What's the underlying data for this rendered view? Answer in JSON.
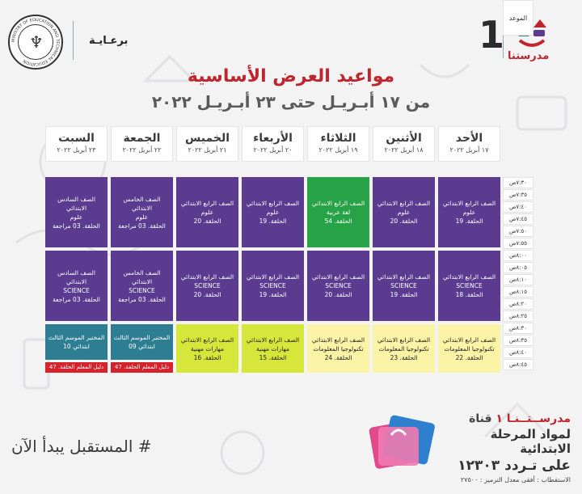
{
  "brand": {
    "number": "1",
    "name": "مدرستنا",
    "sponsor": "برعـايـة",
    "seal_text": "MINISTRY OF EDUCATION AND TECHNICAL EDUCATION"
  },
  "title": "مواعيد العرض الأساسية",
  "subtitle": "من ١٧ أبـريـل حتى ٢٣ أبـريـل ٢٠٢٢",
  "table": {
    "time_header": "الموعد",
    "days": [
      {
        "day": "الأحد",
        "date": "١٧ أبريل ٢٠٢٢"
      },
      {
        "day": "الأثنين",
        "date": "١٨ أبريل ٢٠٢٢"
      },
      {
        "day": "الثلاثاء",
        "date": "١٩ أبريل ٢٠٢٢"
      },
      {
        "day": "الأربعاء",
        "date": "٢٠ أبريل ٢٠٢٢"
      },
      {
        "day": "الخميس",
        "date": "٢١ أبريل ٢٠٢٢"
      },
      {
        "day": "الجمعة",
        "date": "٢٢ أبريل ٢٠٢٢"
      },
      {
        "day": "السبت",
        "date": "٢٣ أبريل ٢٠٢٢"
      }
    ],
    "times": [
      "٧:٣٠ص",
      "٧:٣٥ص",
      "٧:٤٠ص",
      "٧:٤٥ص",
      "٧:٥٠ص",
      "٧:٥٥ص",
      "٨:٠٠ص",
      "٨:٠٥ص",
      "٨:١٠ص",
      "٨:١٥ص",
      "٨:٢٠ص",
      "٨:٢٥ص",
      "٨:٣٠ص",
      "٨:٣٥ص",
      "٨:٤٠ص",
      "٨:٤٥ص"
    ],
    "row1": [
      {
        "l1": "الصف الرابع الابتدائي",
        "l2": "علوم",
        "l3": "الحلقة. 19",
        "color": "#5b3b90"
      },
      {
        "l1": "الصف الرابع الابتدائي",
        "l2": "علوم",
        "l3": "الحلقة. 20",
        "color": "#5b3b90"
      },
      {
        "l1": "الصف الرابع الابتدائي",
        "l2": "لغة عربية",
        "l3": "الحلقة. 54",
        "color": "#27a246"
      },
      {
        "l1": "الصف الرابع الابتدائي",
        "l2": "علوم",
        "l3": "الحلقة. 19",
        "color": "#5b3b90"
      },
      {
        "l1": "الصف الرابع الابتدائي",
        "l2": "علوم",
        "l3": "الحلقة. 20",
        "color": "#5b3b90"
      },
      {
        "l1": "الصف الخامس الابتدائي",
        "l2": "علوم",
        "l3": "الحلقة. 03 مراجعة",
        "color": "#5b3b90"
      },
      {
        "l1": "الصف السادس الابتدائي",
        "l2": "علوم",
        "l3": "الحلقة. 03 مراجعة",
        "color": "#5b3b90"
      }
    ],
    "row2": [
      {
        "l1": "الصف الرابع الابتدائي",
        "l2": "SCIENCE",
        "l3": "الحلقة. 18",
        "color": "#5b3b90"
      },
      {
        "l1": "الصف الرابع الابتدائي",
        "l2": "SCIENCE",
        "l3": "الحلقة. 19",
        "color": "#5b3b90"
      },
      {
        "l1": "الصف الرابع الابتدائي",
        "l2": "SCIENCE",
        "l3": "الحلقة. 20",
        "color": "#5b3b90"
      },
      {
        "l1": "الصف الرابع الابتدائي",
        "l2": "SCIENCE",
        "l3": "الحلقة. 19",
        "color": "#5b3b90"
      },
      {
        "l1": "الصف الرابع الابتدائي",
        "l2": "SCIENCE",
        "l3": "الحلقة. 20",
        "color": "#5b3b90"
      },
      {
        "l1": "الصف الخامس الابتدائي",
        "l2": "SCIENCE",
        "l3": "الحلقة. 03 مراجعة",
        "color": "#5b3b90"
      },
      {
        "l1": "الصف السادس الابتدائي",
        "l2": "SCIENCE",
        "l3": "الحلقة. 03 مراجعة",
        "color": "#5b3b90"
      }
    ],
    "row3": [
      {
        "l1": "الصف الرابع الابتدائي",
        "l2": "تكنولوجيا المعلومات",
        "l3": "الحلقة. 22",
        "color": "#fbf3a6"
      },
      {
        "l1": "الصف الرابع الابتدائي",
        "l2": "تكنولوجيا المعلومات",
        "l3": "الحلقة. 23",
        "color": "#fbf3a6"
      },
      {
        "l1": "الصف الرابع الابتدائي",
        "l2": "تكنولوجيا المعلومات",
        "l3": "الحلقة. 24",
        "color": "#fbf3a6"
      },
      {
        "l1": "الصف الرابع الابتدائي",
        "l2": "مهارات مهنية",
        "l3": "الحلقة. 15",
        "color": "#d7e63a"
      },
      {
        "l1": "الصف الرابع الابتدائي",
        "l2": "مهارات مهنية",
        "l3": "الحلقة. 16",
        "color": "#d7e63a"
      },
      {
        "l1": "المختبر  الموسم الثالث",
        "l2": "ابتدائي 09",
        "l3": "",
        "color": "#2e7e93"
      },
      {
        "l1": "المختبر  الموسم الثالث",
        "l2": "ابتدائي 10",
        "l3": "",
        "color": "#2e7e93"
      }
    ],
    "ribbons": [
      "دليل المعلم الحلقة. 47",
      "دليل المعلم الحلقة. 47"
    ]
  },
  "footer": {
    "hashtag": "# المستقبل يبدأ الآن",
    "channel": "قناة",
    "channel_name": "مدرســتــنـا ١",
    "line2": "لمواد المرحلة الابتدائية",
    "line3": "على تـردد ١٢٣٠٣",
    "line4": "الاستقطاب : أفقى معدل الترميز : ٢٧٥٠٠"
  },
  "colors": {
    "purple": "#5b3b90",
    "green": "#27a246",
    "yellow": "#fbf3a6",
    "lime": "#d7e63a",
    "teal": "#2e7e93",
    "red": "#d8222b",
    "title_red": "#c0242d"
  }
}
